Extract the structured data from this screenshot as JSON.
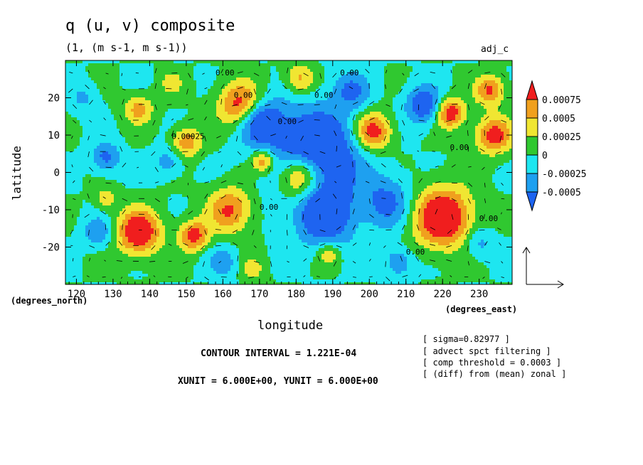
{
  "header": {
    "title": "q (u, v) composite",
    "units": "(1, (m s-1, m s-1))",
    "tag": "adj_c"
  },
  "axes": {
    "x_label": "longitude",
    "y_label": "latitude",
    "x_note": "(degrees_east)",
    "y_note": "(degrees_north)"
  },
  "footer": {
    "contour_interval": "CONTOUR INTERVAL = 1.221E-04",
    "xyunit": "XUNIT = 6.000E+00, YUNIT = 6.000E+00"
  },
  "notes": [
    "[ sigma=0.82977 ]",
    "[ advect spct filtering ]",
    "[ comp threshold = 0.0003 ]",
    "[ (diff) from (mean) zonal ]"
  ],
  "chart_data": {
    "type": "heatmap",
    "xlim": [
      117,
      239
    ],
    "ylim": [
      -30,
      30
    ],
    "x_ticks": [
      120,
      130,
      140,
      150,
      160,
      170,
      180,
      190,
      200,
      210,
      220,
      230
    ],
    "y_ticks": [
      20,
      10,
      0,
      -10,
      -20
    ],
    "colorbar": {
      "levels": [
        -0.0005,
        -0.00025,
        0,
        0.00025,
        0.0005,
        0.00075
      ],
      "labels": [
        "0.00075",
        "0.0005",
        "0.00025",
        "0",
        "-0.00025",
        "-0.0005"
      ],
      "colors": [
        "#1e64f0",
        "#1ea0f0",
        "#1ee6f0",
        "#30c830",
        "#f0e632",
        "#f0a01e",
        "#f01e1e"
      ]
    },
    "features": [
      {
        "x": 137,
        "y": -16,
        "v": 0.0011,
        "r": 6
      },
      {
        "x": 152,
        "y": -17,
        "v": 0.0009,
        "r": 4
      },
      {
        "x": 165,
        "y": 18,
        "v": 0.001,
        "r": 6
      },
      {
        "x": 181,
        "y": -1,
        "v": 0.0012,
        "r": 6
      },
      {
        "x": 171,
        "y": 3,
        "v": 0.0008,
        "r": 3
      },
      {
        "x": 201,
        "y": 11,
        "v": 0.001,
        "r": 5
      },
      {
        "x": 222,
        "y": 16,
        "v": 0.001,
        "r": 4
      },
      {
        "x": 234,
        "y": 10,
        "v": 0.0009,
        "r": 5
      },
      {
        "x": 233,
        "y": 22,
        "v": 0.0008,
        "r": 4
      },
      {
        "x": 220,
        "y": -12,
        "v": 0.0012,
        "r": 8
      },
      {
        "x": 162,
        "y": -10,
        "v": 0.0008,
        "r": 6
      },
      {
        "x": 150,
        "y": 8,
        "v": 0.0007,
        "r": 4
      },
      {
        "x": 137,
        "y": 17,
        "v": 0.0006,
        "r": 4
      },
      {
        "x": 181,
        "y": 25,
        "v": 0.0006,
        "r": 4
      },
      {
        "x": 128,
        "y": -7,
        "v": 0.0004,
        "r": 3
      },
      {
        "x": 189,
        "y": -22,
        "v": 0.0005,
        "r": 3
      },
      {
        "x": 168,
        "y": -26,
        "v": 0.0004,
        "r": 3
      },
      {
        "x": 146,
        "y": 24,
        "v": 0.0004,
        "r": 3
      },
      {
        "x": 185,
        "y": 5,
        "v": -0.0011,
        "r": 12
      },
      {
        "x": 170,
        "y": 14,
        "v": -0.0009,
        "r": 6
      },
      {
        "x": 188,
        "y": -12,
        "v": -0.0008,
        "r": 8
      },
      {
        "x": 215,
        "y": 18,
        "v": -0.0008,
        "r": 5
      },
      {
        "x": 205,
        "y": -8,
        "v": -0.0006,
        "r": 7
      },
      {
        "x": 128,
        "y": 4,
        "v": -0.0006,
        "r": 4
      },
      {
        "x": 126,
        "y": -16,
        "v": -0.0005,
        "r": 4
      },
      {
        "x": 195,
        "y": 22,
        "v": -0.0005,
        "r": 5
      },
      {
        "x": 230,
        "y": -19,
        "v": -0.0004,
        "r": 4
      },
      {
        "x": 208,
        "y": -24,
        "v": -0.0005,
        "r": 4
      },
      {
        "x": 145,
        "y": 3,
        "v": -0.0004,
        "r": 4
      },
      {
        "x": 122,
        "y": 20,
        "v": -0.0003,
        "r": 4
      },
      {
        "x": 160,
        "y": -24,
        "v": -0.0004,
        "r": 4
      }
    ],
    "contour_labels": [
      "0.00",
      "0.00",
      "0.00",
      "0.00",
      "0.00025",
      "0.00",
      "0.00",
      "0.00",
      "0.00",
      "0.00"
    ]
  }
}
